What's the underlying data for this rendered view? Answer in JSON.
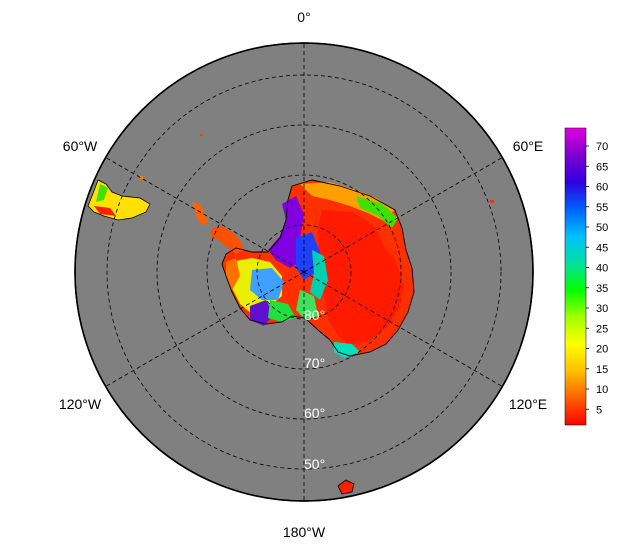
{
  "map": {
    "projection": "south-polar-stereographic",
    "background_color": "#808080",
    "graticule_style": "dashed",
    "longitude_labels": [
      {
        "key": "0",
        "text": "0°"
      },
      {
        "key": "60E",
        "text": "60°E"
      },
      {
        "key": "120E",
        "text": "120°E"
      },
      {
        "key": "180",
        "text": "180°W"
      },
      {
        "key": "120W",
        "text": "120°W"
      },
      {
        "key": "60W",
        "text": "60°W"
      }
    ],
    "latitude_labels": [
      {
        "key": "80",
        "text": "80°"
      },
      {
        "key": "70",
        "text": "70°"
      },
      {
        "key": "60",
        "text": "60°"
      },
      {
        "key": "50",
        "text": "50°"
      }
    ]
  },
  "colorbar": {
    "ticks": [
      "70",
      "65",
      "60",
      "55",
      "50",
      "45",
      "40",
      "35",
      "30",
      "25",
      "20",
      "15",
      "10",
      "5"
    ],
    "colors": [
      "#ff0000",
      "#ff6000",
      "#ffc000",
      "#ffff00",
      "#a0ff00",
      "#00ff00",
      "#00e0a0",
      "#00c0ff",
      "#0060ff",
      "#3000e0",
      "#8000d0",
      "#e000e0"
    ]
  }
}
